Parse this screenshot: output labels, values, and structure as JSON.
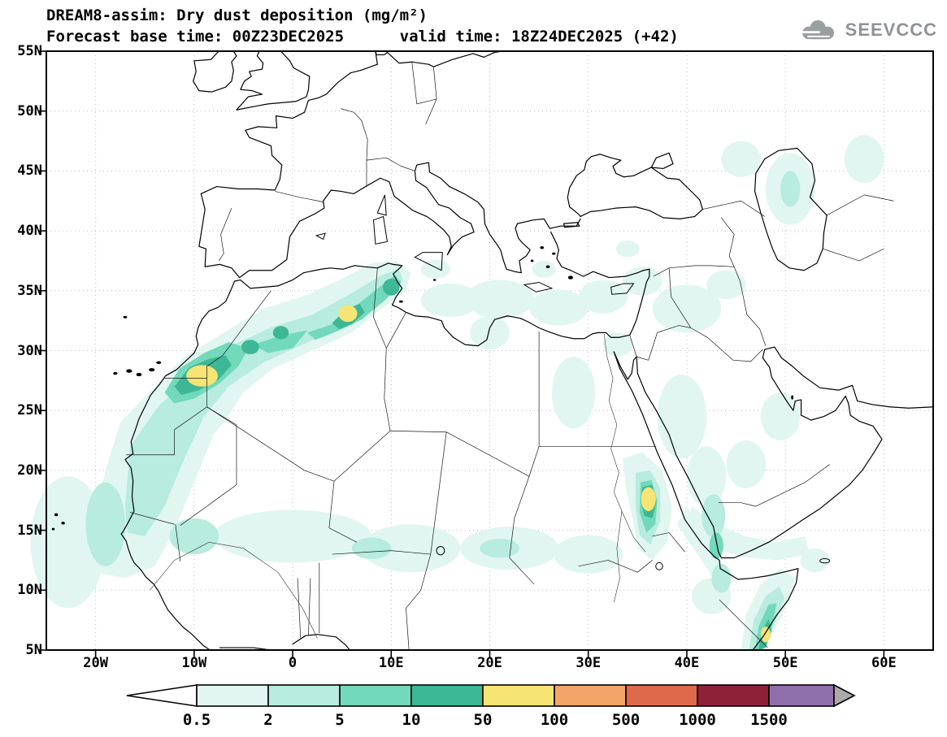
{
  "header": {
    "title_line1": "DREAM8-assim: Dry dust deposition (mg/m²)",
    "title_line2": "Forecast base time: 00Z23DEC2025      valid time: 18Z24DEC2025 (+42)"
  },
  "logo": {
    "text": "SEEVCCC"
  },
  "axes": {
    "lat_labels": [
      "55N",
      "50N",
      "45N",
      "40N",
      "35N",
      "30N",
      "25N",
      "20N",
      "15N",
      "10N",
      "5N"
    ],
    "lon_labels": [
      "20W",
      "10W",
      "0",
      "10E",
      "20E",
      "30E",
      "40E",
      "50E",
      "60E"
    ]
  },
  "colorbar": {
    "labels": [
      "0.5",
      "2",
      "5",
      "10",
      "50",
      "100",
      "500",
      "1000",
      "1500"
    ],
    "colors": [
      "#ffffff",
      "#e1f6f1",
      "#b7ecdf",
      "#72d9ba",
      "#3db795",
      "#f6e475",
      "#f2a468",
      "#df6a4b",
      "#8e2138",
      "#9070ac",
      "#ababab"
    ],
    "underflow_color": "#ffffff",
    "overflow_color": "#ababab"
  },
  "chart_data": {
    "type": "heatmap",
    "title": "DREAM8-assim: Dry dust deposition (mg/m²)",
    "subtitle": "Forecast base time: 00Z23DEC2025  valid time: 18Z24DEC2025 (+42)",
    "model": "DREAM8-assim",
    "variable": "Dry dust deposition",
    "units": "mg/m²",
    "forecast_base_time": "00Z23DEC2025",
    "valid_time": "18Z24DEC2025",
    "forecast_hour": "+42",
    "lon_range_deg": [
      -25,
      65
    ],
    "lat_range_deg": [
      5,
      55
    ],
    "lon_ticks": [
      "20W",
      "10W",
      "0",
      "10E",
      "20E",
      "30E",
      "40E",
      "50E",
      "60E"
    ],
    "lat_ticks": [
      "55N",
      "50N",
      "45N",
      "40N",
      "35N",
      "30N",
      "25N",
      "20N",
      "15N",
      "10N",
      "5N"
    ],
    "contour_levels_mg_m2": [
      0.5,
      2,
      5,
      10,
      50,
      100,
      500,
      1000,
      1500
    ],
    "level_colors_low_to_high": [
      "#e1f6f1",
      "#b7ecdf",
      "#72d9ba",
      "#3db795",
      "#f6e475",
      "#f2a468",
      "#df6a4b",
      "#8e2138",
      "#9070ac"
    ],
    "grid": "dotted, 10deg lon x 5deg lat",
    "legend_position": "bottom",
    "max_plotted_category_mg_m2": "50-100",
    "features": [
      {
        "region": "Morocco / Western Sahara core (~9W, 28N)",
        "max_level_mg_m2": "50-100"
      },
      {
        "region": "Northern Algeria core (~5E, 33N)",
        "max_level_mg_m2": "50-100"
      },
      {
        "region": "NW Africa dust band, Atlantic coast to Tunisia (20N-37N)",
        "max_level_mg_m2": "10-50"
      },
      {
        "region": "Sudan / Eritrea core (~36E, 17.5N)",
        "max_level_mg_m2": "50-100"
      },
      {
        "region": "Southern Somalia core (~48E, 6N)",
        "max_level_mg_m2": "50-100"
      },
      {
        "region": "Atlantic offshore Mauritania/Senegal (10N-25N)",
        "max_level_mg_m2": "2-5"
      },
      {
        "region": "Sahel band (12N-16N, 10W-30E)",
        "max_level_mg_m2": "0.5-2"
      },
      {
        "region": "Central/Eastern Mediterranean patches",
        "max_level_mg_m2": "0.5-2"
      },
      {
        "region": "Levant / Iraq / western Arabia patches",
        "max_level_mg_m2": "0.5-2"
      },
      {
        "region": "Gulf of Aden / SW Arabia streak",
        "max_level_mg_m2": "5-10"
      },
      {
        "region": "Caspian Sea area patch",
        "max_level_mg_m2": "2-5"
      }
    ]
  }
}
